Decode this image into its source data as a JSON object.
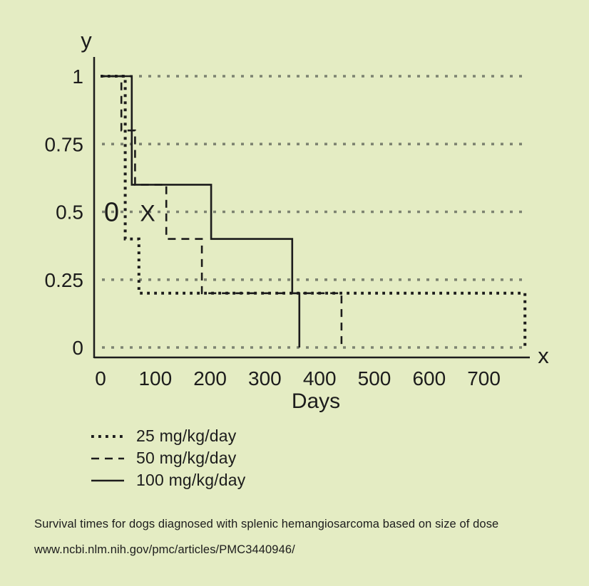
{
  "colors": {
    "background": "#e4ecc3",
    "ink": "#1c1c1c",
    "grid": "#7d8371"
  },
  "axis_letters": {
    "y": "y",
    "x": "x"
  },
  "chart_data": {
    "type": "line",
    "subtype": "kaplan-meier-step-survival",
    "title": "",
    "xlabel": "Days",
    "ylabel": "",
    "xlim": [
      0,
      790
    ],
    "ylim": [
      0,
      1
    ],
    "x_ticks": [
      0,
      100,
      200,
      300,
      400,
      500,
      600,
      700
    ],
    "x_tick_labels": [
      "0",
      "100",
      "200",
      "300",
      "400",
      "500",
      "600",
      "700"
    ],
    "y_ticks": [
      0,
      0.25,
      0.5,
      0.75,
      1
    ],
    "y_tick_labels": [
      "0",
      "0.25",
      "0.5",
      "0.75",
      "1"
    ],
    "grid": "horizontal dotted gridlines at each y tick",
    "legend_position": "below plot, left aligned",
    "series": [
      {
        "name": "25 mg/kg/day",
        "line_style": "dotted",
        "points": [
          [
            0,
            1
          ],
          [
            45,
            1
          ],
          [
            45,
            0.4
          ],
          [
            70,
            0.4
          ],
          [
            70,
            0.2
          ],
          [
            775,
            0.2
          ],
          [
            775,
            0
          ]
        ]
      },
      {
        "name": "50 mg/kg/day",
        "line_style": "dashed",
        "points": [
          [
            0,
            1
          ],
          [
            38,
            1
          ],
          [
            38,
            0.8
          ],
          [
            63,
            0.8
          ],
          [
            63,
            0.6
          ],
          [
            120,
            0.6
          ],
          [
            120,
            0.4
          ],
          [
            185,
            0.4
          ],
          [
            185,
            0.2
          ],
          [
            440,
            0.2
          ],
          [
            440,
            0
          ]
        ]
      },
      {
        "name": "100 mg/kg/day",
        "line_style": "solid",
        "points": [
          [
            0,
            1
          ],
          [
            57,
            1
          ],
          [
            57,
            0.6
          ],
          [
            202,
            0.6
          ],
          [
            202,
            0.4
          ],
          [
            350,
            0.4
          ],
          [
            350,
            0.2
          ],
          [
            363,
            0.2
          ],
          [
            363,
            0
          ]
        ]
      }
    ],
    "annotations": [
      {
        "text": "0",
        "x": 20,
        "y": 0.5
      },
      {
        "text": "X",
        "x": 86,
        "y": 0.5
      }
    ]
  },
  "caption": {
    "line1": "Survival times for dogs diagnosed with splenic hemangiosarcoma based on size of dose",
    "line2": "www.ncbi.nlm.nih.gov/pmc/articles/PMC3440946/"
  }
}
